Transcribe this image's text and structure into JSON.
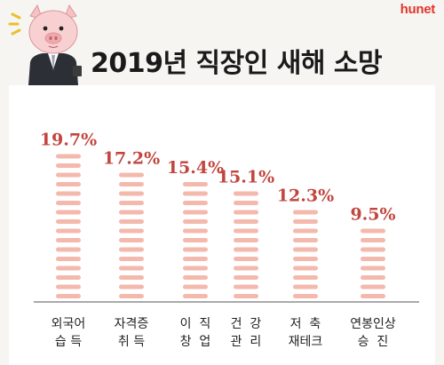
{
  "brand": "hunet",
  "title": "2019년 직장인 새해 소망",
  "icons": {
    "mascot": "pig-businessman-icon"
  },
  "colors": {
    "bar": "#f4b9ad",
    "value": "#c2453e",
    "axis": "#777777",
    "label": "#222222"
  },
  "chart_data": {
    "type": "bar",
    "title": "2019년 직장인 새해 소망",
    "categories": [
      [
        "외국어",
        "습 득"
      ],
      [
        "자격증",
        "취 득"
      ],
      [
        "이  직",
        "창  업"
      ],
      [
        "건  강",
        "관  리"
      ],
      [
        "저  축",
        "재테크"
      ],
      [
        "연봉인상",
        "승  진"
      ]
    ],
    "values": [
      19.7,
      17.2,
      15.4,
      15.1,
      12.3,
      9.5
    ],
    "value_labels": [
      "19.7%",
      "17.2%",
      "15.4%",
      "15.1%",
      "12.3%",
      "9.5%"
    ],
    "ylim": [
      0,
      20
    ],
    "grid": false,
    "xlabel": "",
    "ylabel": ""
  }
}
